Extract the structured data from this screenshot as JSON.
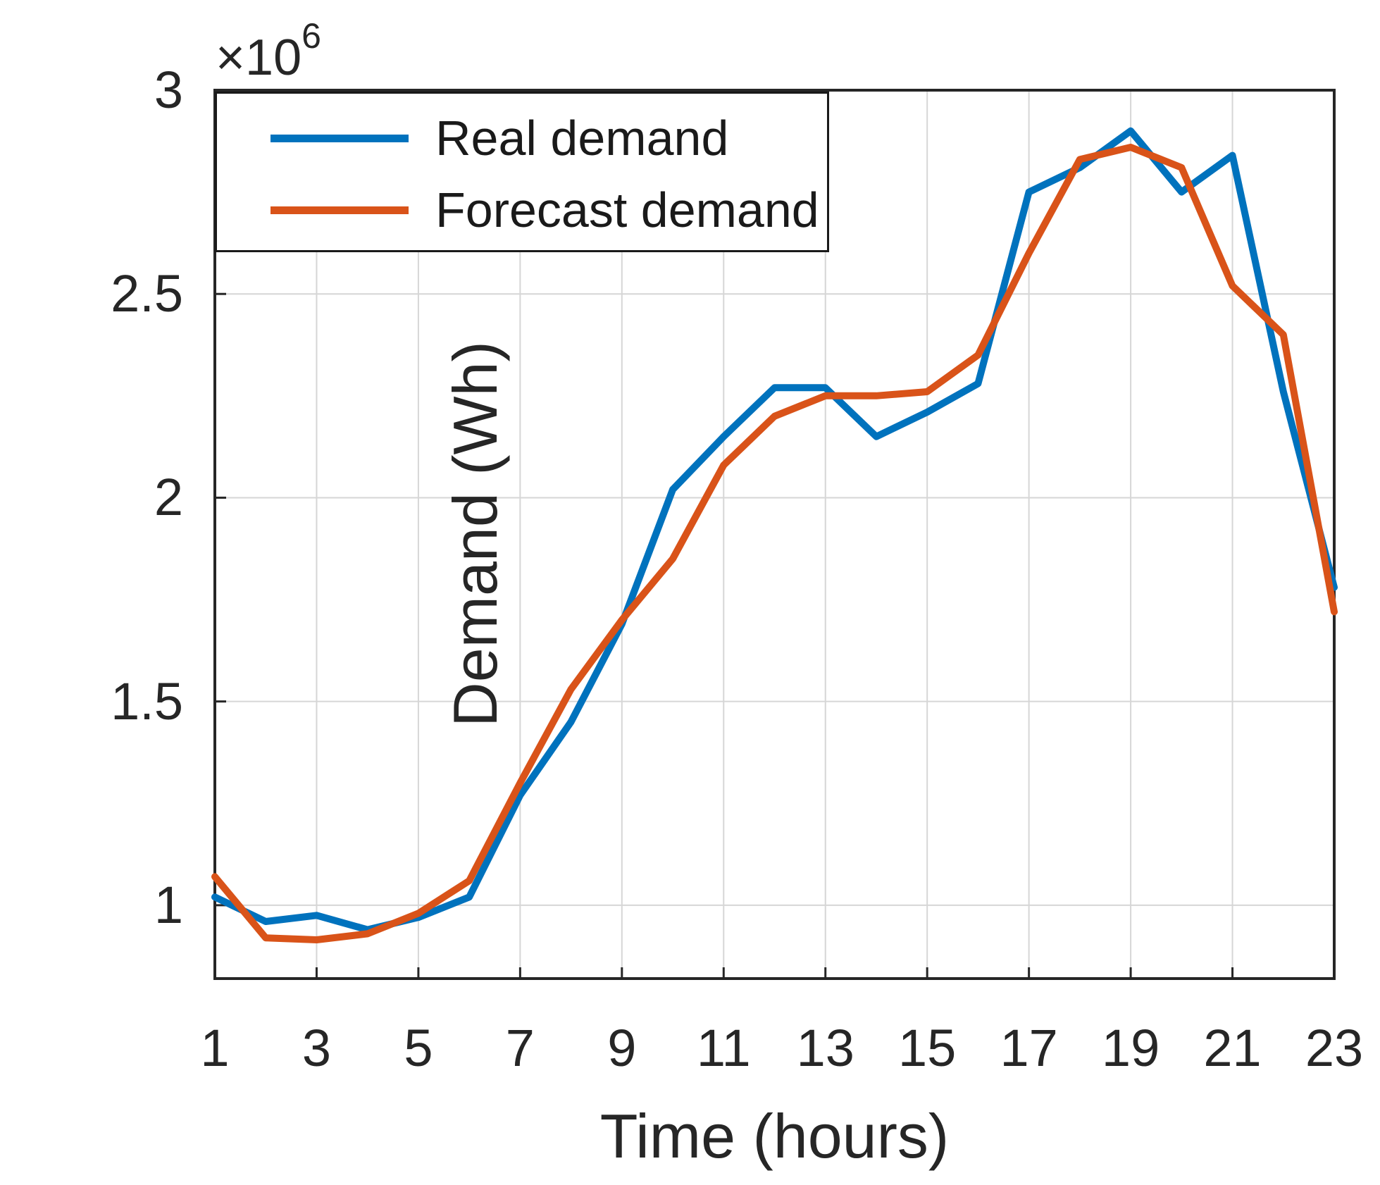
{
  "figure": {
    "background_color": "#ffffff",
    "axis_color": "#262626",
    "grid_color": "#d6d6d6",
    "plot_bg_color": "#ffffff"
  },
  "chart_data": {
    "type": "line",
    "title": "",
    "xlabel": "Time (hours)",
    "ylabel": "Demand (Wh)",
    "y_scale_label": {
      "prefix": "×10",
      "exponent": "6"
    },
    "value_multiplier": 1000000,
    "xlim": [
      1,
      23
    ],
    "ylim": [
      0.82,
      3.0
    ],
    "xticks": [
      1,
      3,
      5,
      7,
      9,
      11,
      13,
      15,
      17,
      19,
      21,
      23
    ],
    "yticks": [
      1,
      1.5,
      2,
      2.5,
      3
    ],
    "grid": true,
    "legend_position": "top-left",
    "x": [
      1,
      2,
      3,
      4,
      5,
      6,
      7,
      8,
      9,
      10,
      11,
      12,
      13,
      14,
      15,
      16,
      17,
      18,
      19,
      20,
      21,
      22,
      23
    ],
    "series": [
      {
        "name": "Real demand",
        "color": "#0072BD",
        "values": [
          1.02,
          0.96,
          0.975,
          0.94,
          0.97,
          1.02,
          1.27,
          1.45,
          1.69,
          2.02,
          2.15,
          2.27,
          2.27,
          2.15,
          2.21,
          2.28,
          2.75,
          2.81,
          2.9,
          2.75,
          2.84,
          2.26,
          1.78
        ]
      },
      {
        "name": "Forecast demand",
        "color": "#D95319",
        "values": [
          1.07,
          0.92,
          0.915,
          0.93,
          0.98,
          1.06,
          1.3,
          1.53,
          1.7,
          1.85,
          2.08,
          2.2,
          2.25,
          2.25,
          2.26,
          2.35,
          2.6,
          2.83,
          2.86,
          2.81,
          2.52,
          2.4,
          1.72
        ]
      }
    ]
  }
}
